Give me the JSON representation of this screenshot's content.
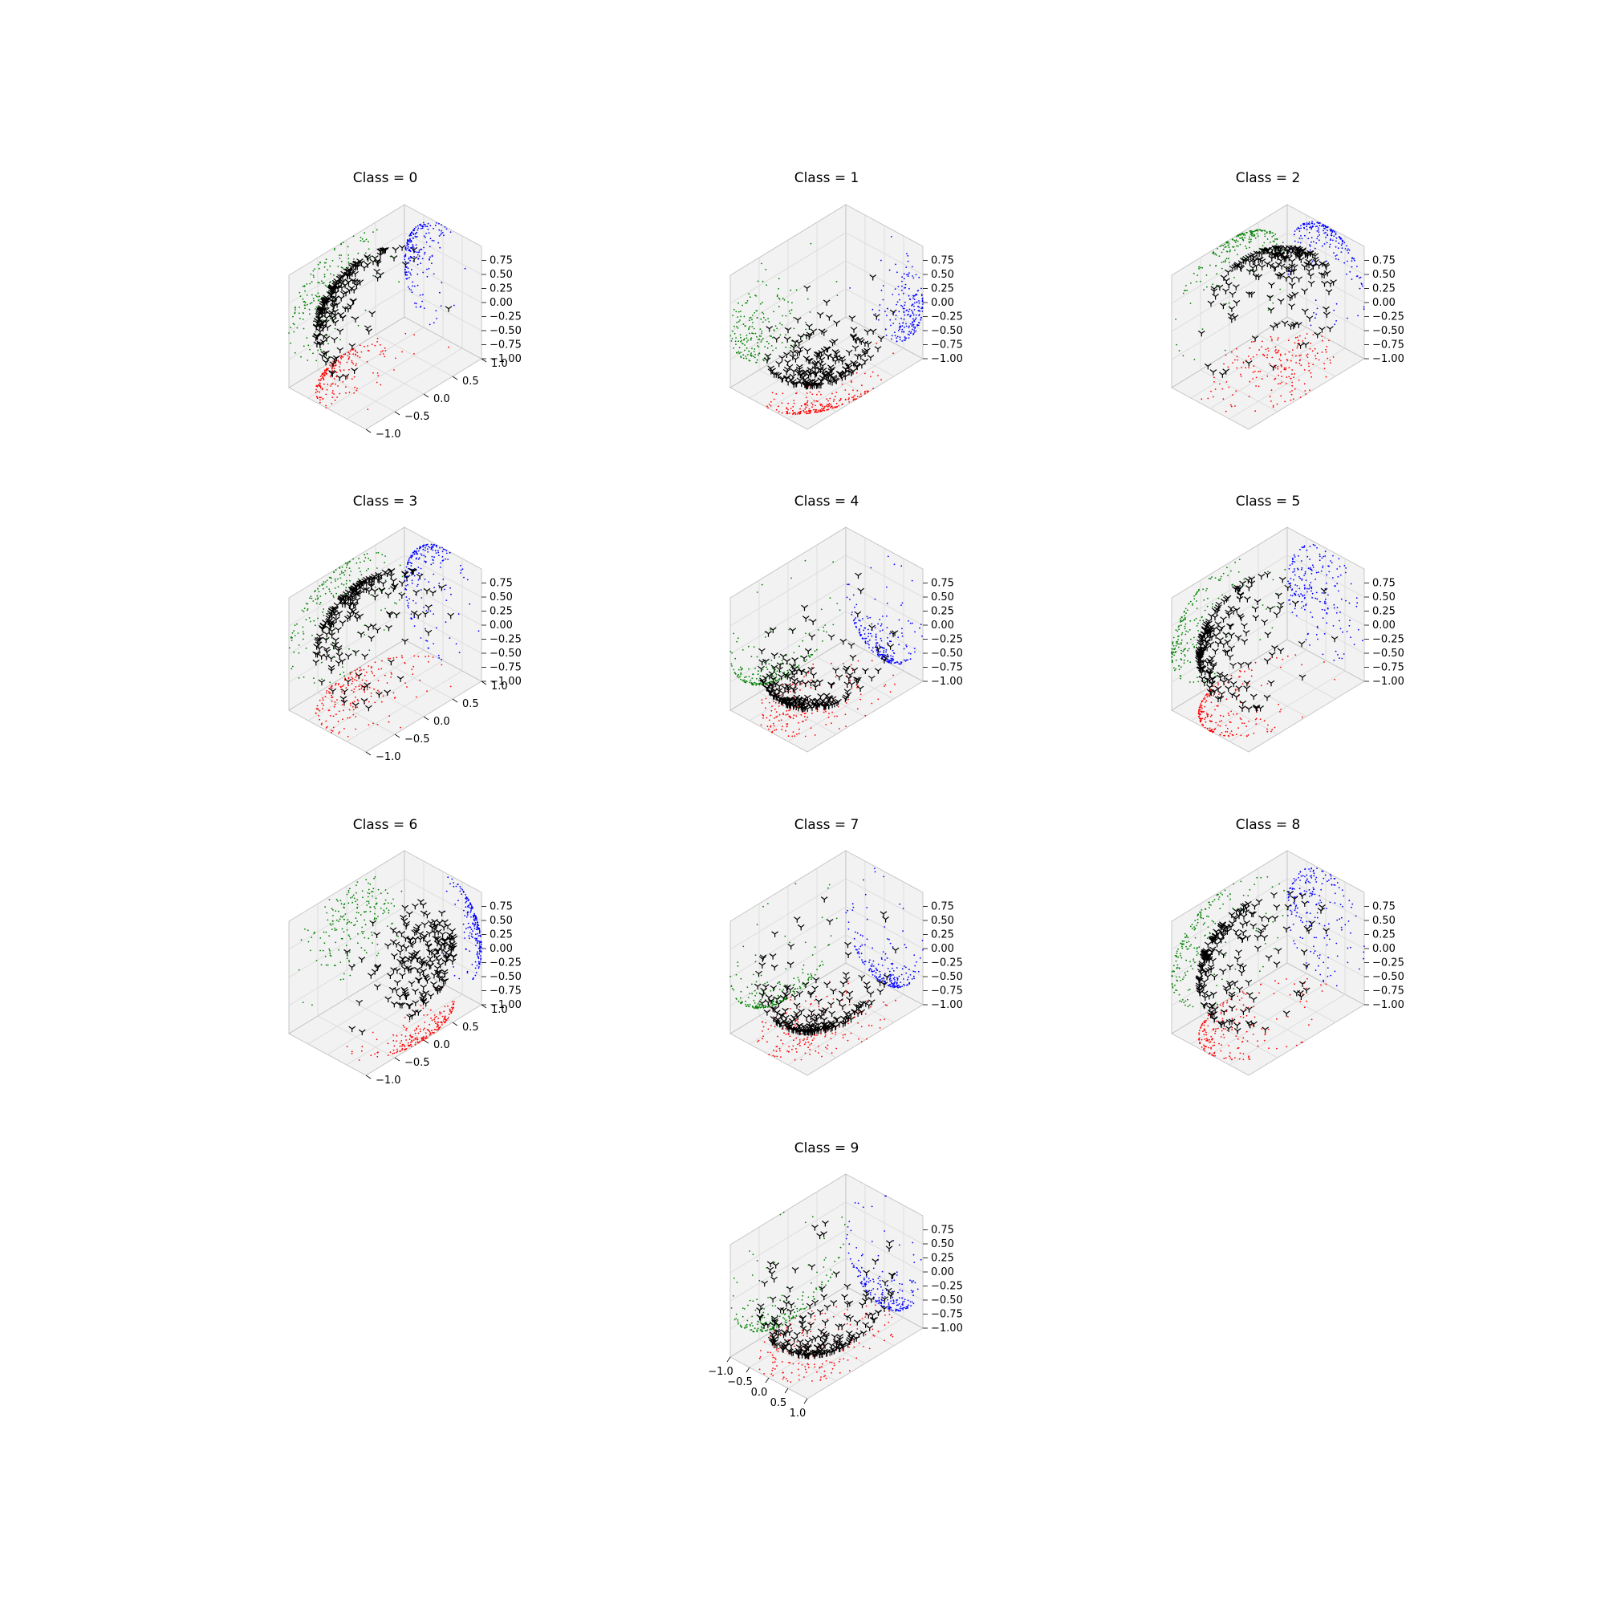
{
  "figure": {
    "background": "#ffffff"
  },
  "colors": {
    "x_projection": "#ff0000",
    "y_projection": "#008000",
    "z_projection": "#0000ff",
    "points": "#000000",
    "pane": "#f2f2f2",
    "grid": "#d9d9d9"
  },
  "marker_icon": "tri-down-marker",
  "chart_data": [
    {
      "type": "scatter",
      "title": "Class = 0",
      "zticks": [
        "0.75",
        "0.50",
        "0.25",
        "0.00",
        "−0.25",
        "−0.50",
        "−0.75",
        "−1.00"
      ],
      "yticks": [
        "1.0",
        "0.5",
        "0.0",
        "−0.5",
        "−1.0"
      ],
      "xticks": [],
      "cluster": {
        "direction": [
          -0.55,
          -0.3,
          0.25
        ],
        "spread": 0.55,
        "count": 200
      }
    },
    {
      "type": "scatter",
      "title": "Class = 1",
      "zticks": [
        "0.75",
        "0.50",
        "0.25",
        "0.00",
        "−0.25",
        "−0.50",
        "−0.75",
        "−1.00"
      ],
      "yticks": [],
      "xticks": [],
      "cluster": {
        "direction": [
          0.7,
          -0.6,
          -0.4
        ],
        "spread": 0.45,
        "count": 200
      }
    },
    {
      "type": "scatter",
      "title": "Class = 2",
      "zticks": [
        "0.75",
        "0.50",
        "0.25",
        "0.00",
        "−0.25",
        "−0.50",
        "−0.75",
        "−1.00"
      ],
      "yticks": [],
      "xticks": [],
      "cluster": {
        "direction": [
          0.0,
          0.2,
          0.9
        ],
        "spread": 0.7,
        "count": 200
      }
    },
    {
      "type": "scatter",
      "title": "Class = 3",
      "zticks": [
        "0.75",
        "0.50",
        "0.25",
        "0.00",
        "−0.25",
        "−0.50",
        "−0.75",
        "−1.00"
      ],
      "yticks": [
        "1.0",
        "0.5",
        "0.0",
        "−0.5",
        "−1.0"
      ],
      "xticks": [],
      "cluster": {
        "direction": [
          -0.6,
          -0.2,
          0.6
        ],
        "spread": 0.7,
        "count": 200
      }
    },
    {
      "type": "scatter",
      "title": "Class = 4",
      "zticks": [
        "0.75",
        "0.50",
        "0.25",
        "0.00",
        "−0.25",
        "−0.50",
        "−0.75",
        "−1.00"
      ],
      "yticks": [],
      "xticks": [],
      "cluster": {
        "direction": [
          -0.1,
          -0.4,
          -0.85
        ],
        "spread": 0.6,
        "count": 200
      }
    },
    {
      "type": "scatter",
      "title": "Class = 5",
      "zticks": [
        "0.75",
        "0.50",
        "0.25",
        "0.00",
        "−0.25",
        "−0.50",
        "−0.75",
        "−1.00"
      ],
      "yticks": [],
      "xticks": [],
      "cluster": {
        "direction": [
          -0.3,
          -0.6,
          0.2
        ],
        "spread": 0.7,
        "count": 200
      }
    },
    {
      "type": "scatter",
      "title": "Class = 6",
      "zticks": [
        "0.75",
        "0.50",
        "0.25",
        "0.00",
        "−0.25",
        "−0.50",
        "−0.75",
        "−1.00"
      ],
      "yticks": [
        "1.0",
        "0.5",
        "0.0",
        "−0.5",
        "−1.0"
      ],
      "xticks": [],
      "cluster": {
        "direction": [
          0.85,
          0.2,
          0.3
        ],
        "spread": 0.45,
        "count": 200
      }
    },
    {
      "type": "scatter",
      "title": "Class = 7",
      "zticks": [
        "0.75",
        "0.50",
        "0.25",
        "0.00",
        "−0.25",
        "−0.50",
        "−0.75",
        "−1.00"
      ],
      "yticks": [],
      "xticks": [],
      "cluster": {
        "direction": [
          0.1,
          -0.3,
          -0.9
        ],
        "spread": 0.6,
        "count": 200
      }
    },
    {
      "type": "scatter",
      "title": "Class = 8",
      "zticks": [
        "0.75",
        "0.50",
        "0.25",
        "0.00",
        "−0.25",
        "−0.50",
        "−0.75",
        "−1.00"
      ],
      "yticks": [],
      "xticks": [],
      "cluster": {
        "direction": [
          -0.3,
          -0.6,
          0.3
        ],
        "spread": 0.8,
        "count": 200
      }
    },
    {
      "type": "scatter",
      "title": "Class = 9",
      "zticks": [
        "0.75",
        "0.50",
        "0.25",
        "0.00",
        "−0.25",
        "−0.50",
        "−0.75",
        "−1.00"
      ],
      "yticks": [],
      "xticks": [
        "−1.0",
        "−0.5",
        "0.0",
        "0.5",
        "1.0"
      ],
      "cluster": {
        "direction": [
          0.0,
          -0.3,
          -0.9
        ],
        "spread": 0.65,
        "count": 200
      }
    }
  ]
}
